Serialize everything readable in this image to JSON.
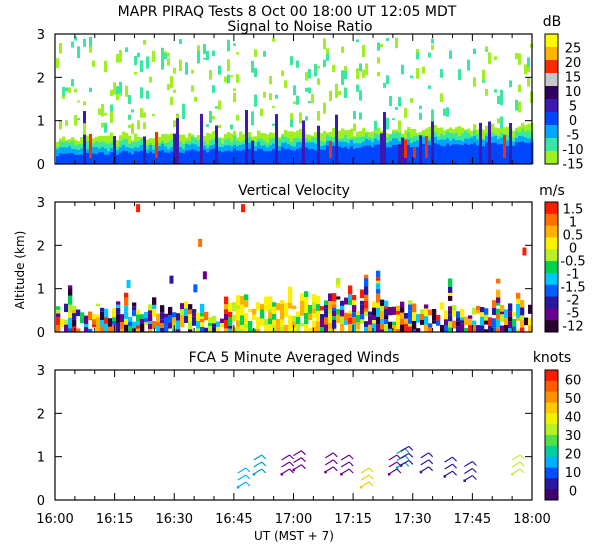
{
  "chart_data": [
    {
      "type": "heatmap",
      "suptitle": "MAPR PIRAQ Tests   8 Oct 00   18:00 UT   12:05   MDT",
      "title": "Signal to Noise Ratio",
      "ylabel": "",
      "ylim": [
        0,
        3
      ],
      "yticks": [
        "0",
        "1",
        "2",
        "3"
      ],
      "colorbar_unit": "dB",
      "colorbar_labels": [
        "25",
        "20",
        "15",
        "10",
        "5",
        "0",
        "-5",
        "-10",
        "-15"
      ],
      "colorbar_colors": [
        "#fffa00",
        "#ffb400",
        "#ff2a00",
        "#c8c8c8",
        "#300060",
        "#3c1ab0",
        "#0046ff",
        "#00a8ff",
        "#38e8a0",
        "#9ef020"
      ],
      "profile": [
        {
          "x": 0.0,
          "base": 0.35,
          "noise": 0.25
        },
        {
          "x": 0.25,
          "base": 0.3,
          "noise": 0.3
        },
        {
          "x": 0.5,
          "base": 0.45,
          "noise": 0.2
        },
        {
          "x": 0.75,
          "base": 0.5,
          "noise": 0.1
        },
        {
          "x": 1.0,
          "base": 0.55,
          "noise": 0.1
        }
      ]
    },
    {
      "type": "heatmap",
      "title": "Vertical Velocity",
      "ylabel": "Altitude (km)",
      "ylim": [
        0,
        3
      ],
      "yticks": [
        "0",
        "1",
        "2",
        "3"
      ],
      "colorbar_unit": "m/s",
      "colorbar_labels": [
        "1.5",
        "1",
        "0.5",
        "0",
        "-0.5",
        "-1",
        "-1.5",
        "-2",
        "-5",
        "-12"
      ],
      "colorbar_colors": [
        "#ff1a00",
        "#ff7000",
        "#ffb000",
        "#fff000",
        "#b8f028",
        "#00d050",
        "#00c8ff",
        "#0060ff",
        "#2a18a0",
        "#6a0090",
        "#2a0030"
      ]
    },
    {
      "type": "scatter",
      "title": "FCA 5 Minute Averaged Winds",
      "ylabel": "",
      "ylim": [
        0,
        3
      ],
      "yticks": [
        "0",
        "1",
        "2",
        "3"
      ],
      "colorbar_unit": "knots",
      "colorbar_labels": [
        "60",
        "50",
        "40",
        "30",
        "20",
        "10",
        "0"
      ],
      "colorbar_colors": [
        "#ff1a00",
        "#ff5a00",
        "#ff9000",
        "#ffc800",
        "#f0f000",
        "#b8f028",
        "#50e048",
        "#00d0a0",
        "#00b0ff",
        "#0050ff",
        "#2a18a0",
        "#400070"
      ],
      "xticks": [
        "16:00",
        "16:15",
        "16:30",
        "16:45",
        "17:00",
        "17:15",
        "17:30",
        "17:45",
        "18:00"
      ],
      "xlabel": "UT   (MST + 7)",
      "xlim_minutes": [
        0,
        120
      ],
      "barbs": [
        {
          "t": 46,
          "alt": 0.3,
          "color": "#00b0ff"
        },
        {
          "t": 50,
          "alt": 0.6,
          "color": "#00a0b0"
        },
        {
          "t": 57,
          "alt": 0.6,
          "color": "#6a0090"
        },
        {
          "t": 60,
          "alt": 0.7,
          "color": "#6a0090"
        },
        {
          "t": 68,
          "alt": 0.65,
          "color": "#6a0090"
        },
        {
          "t": 72,
          "alt": 0.6,
          "color": "#6a0090"
        },
        {
          "t": 77,
          "alt": 0.3,
          "color": "#f0d000"
        },
        {
          "t": 84,
          "alt": 0.6,
          "color": "#6a0090"
        },
        {
          "t": 86,
          "alt": 0.75,
          "color": "#00a0b0"
        },
        {
          "t": 87,
          "alt": 0.8,
          "color": "#2a18a0"
        },
        {
          "t": 92,
          "alt": 0.65,
          "color": "#2a18a0"
        },
        {
          "t": 98,
          "alt": 0.55,
          "color": "#2a18a0"
        },
        {
          "t": 103,
          "alt": 0.45,
          "color": "#2a18a0"
        },
        {
          "t": 115,
          "alt": 0.6,
          "color": "#b8f028"
        }
      ]
    }
  ]
}
